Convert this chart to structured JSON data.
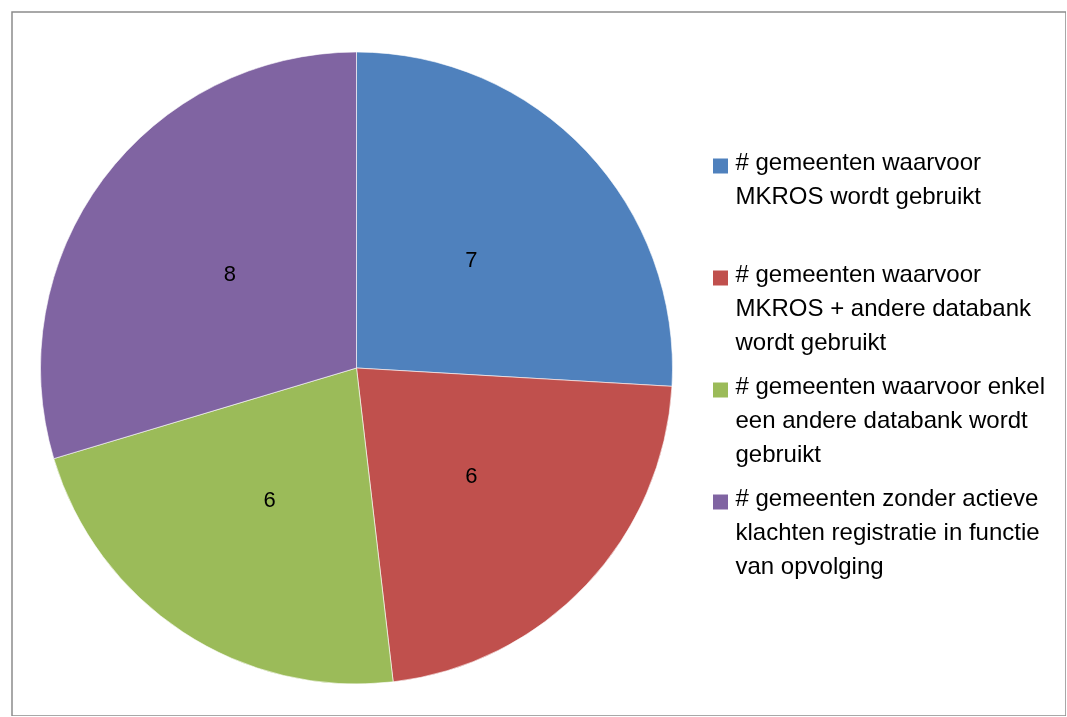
{
  "chart_data": {
    "type": "pie",
    "categories": [
      "# gemeenten waarvoor MKROS wordt gebruikt",
      "# gemeenten waarvoor MKROS + andere databank wordt gebruikt",
      "# gemeenten waarvoor enkel een andere databank wordt gebruikt",
      "# gemeenten zonder actieve klachten registratie in functie van opvolging"
    ],
    "values": [
      7,
      6,
      6,
      8
    ],
    "colors": [
      "#4f81bd",
      "#c0504d",
      "#9bbb59",
      "#8064a2"
    ],
    "data_labels": true,
    "legend": "right"
  }
}
